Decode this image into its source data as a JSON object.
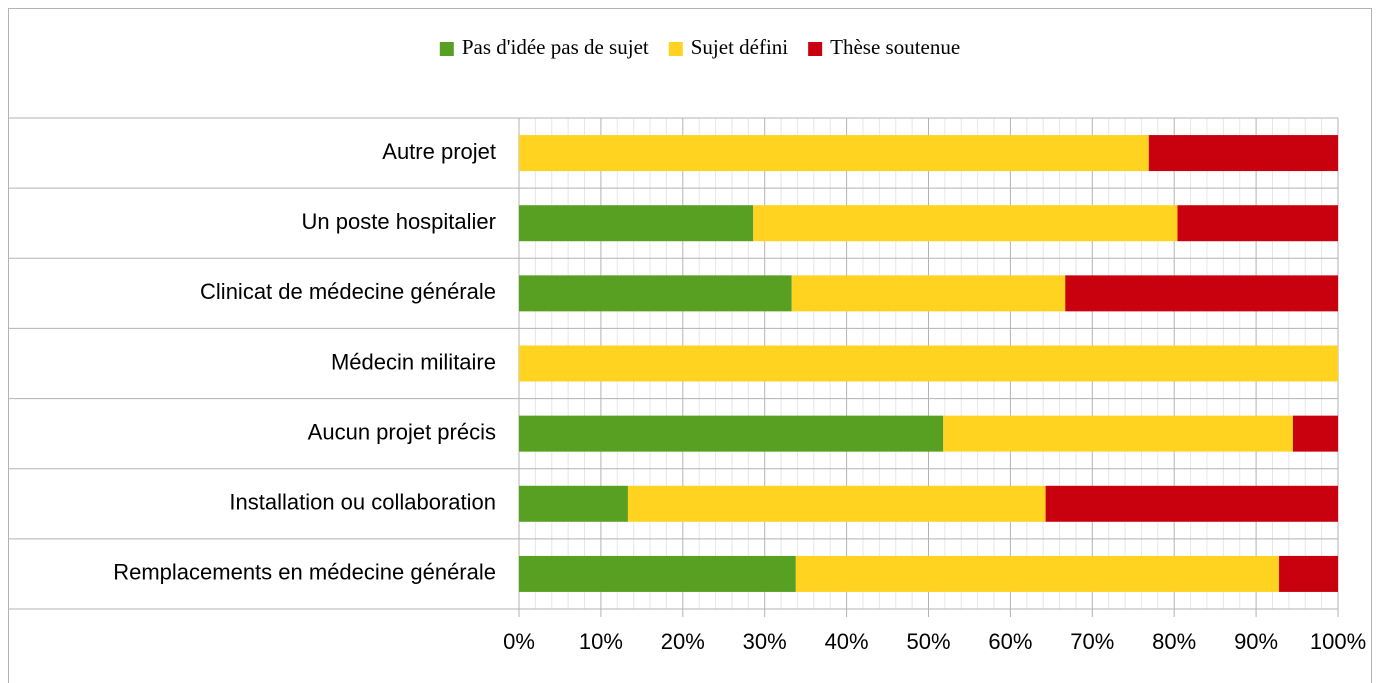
{
  "chart_data": {
    "type": "stacked_bar_horizontal",
    "categories": [
      "Autre projet",
      "Un poste hospitalier",
      "Clinicat de médecine générale",
      "Médecin militaire",
      "Aucun projet précis",
      "Installation ou collaboration",
      "Remplacements en médecine générale"
    ],
    "series": [
      {
        "name": "Pas d'idée pas de sujet",
        "color": "#57a021",
        "values": [
          0,
          28.6,
          33.3,
          0,
          51.8,
          13.3,
          33.8
        ]
      },
      {
        "name": "Sujet défini",
        "color": "#ffd320",
        "values": [
          76.9,
          51.8,
          33.4,
          100,
          42.7,
          51.0,
          59.0
        ]
      },
      {
        "name": "Thèse soutenue",
        "color": "#c9000e",
        "values": [
          23.1,
          19.6,
          33.3,
          0,
          5.5,
          35.7,
          7.2
        ]
      }
    ],
    "xlim": [
      0,
      100
    ],
    "xticks": [
      {
        "value": 0,
        "label": "0%"
      },
      {
        "value": 10,
        "label": "10%"
      },
      {
        "value": 20,
        "label": "20%"
      },
      {
        "value": 30,
        "label": "30%"
      },
      {
        "value": 40,
        "label": "40%"
      },
      {
        "value": 50,
        "label": "50%"
      },
      {
        "value": 60,
        "label": "60%"
      },
      {
        "value": 70,
        "label": "70%"
      },
      {
        "value": 80,
        "label": "80%"
      },
      {
        "value": 90,
        "label": "90%"
      },
      {
        "value": 100,
        "label": "100%"
      }
    ],
    "grid": true,
    "legend": "top"
  }
}
